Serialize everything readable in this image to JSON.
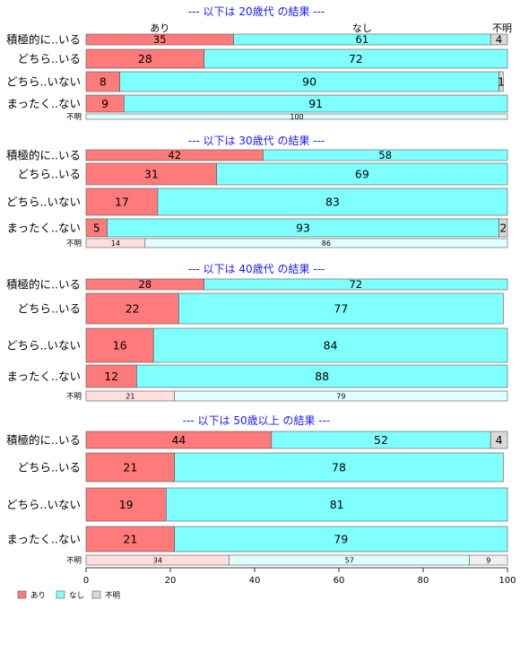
{
  "colors": {
    "あり": "#ff7a7a",
    "なし": "#80ffff",
    "不明": "#d9d9d9",
    "あり_light": "#ffdede",
    "なし_light": "#e0ffff",
    "不明_light": "#f0f0f0",
    "title": "#1a1aff"
  },
  "column_headers": [
    "あり",
    "なし",
    "不明"
  ],
  "chart_data": {
    "type": "bar",
    "orientation": "horizontal",
    "stacked": "percent",
    "xlim": [
      0,
      100
    ],
    "xticks": [
      "0",
      "20",
      "40",
      "60",
      "80",
      "100"
    ],
    "legend": {
      "placement": "bottom-left",
      "entries": [
        "あり",
        "なし",
        "不明"
      ]
    },
    "panels": [
      {
        "title": "--- 以下は 20歳代 の結果 ---",
        "rows": [
          {
            "label": "積極的に..いる",
            "values": [
              35,
              61,
              4
            ]
          },
          {
            "label": "どちら..いる",
            "values": [
              28,
              72,
              0
            ]
          },
          {
            "label": "どちら..いない",
            "values": [
              8,
              90,
              1
            ]
          },
          {
            "label": "まったく..ない",
            "values": [
              9,
              91,
              0
            ]
          },
          {
            "label": "不明",
            "values": [
              0,
              100,
              0
            ],
            "small": true
          }
        ]
      },
      {
        "title": "--- 以下は 30歳代 の結果 ---",
        "rows": [
          {
            "label": "積極的に..いる",
            "values": [
              42,
              58,
              0
            ]
          },
          {
            "label": "どちら..いる",
            "values": [
              31,
              69,
              0
            ]
          },
          {
            "label": "どちら..いない",
            "values": [
              17,
              83,
              0
            ]
          },
          {
            "label": "まったく..ない",
            "values": [
              5,
              93,
              2
            ]
          },
          {
            "label": "不明",
            "values": [
              14,
              86,
              0
            ],
            "small": true
          }
        ]
      },
      {
        "title": "--- 以下は 40歳代 の結果 ---",
        "rows": [
          {
            "label": "積極的に..いる",
            "values": [
              28,
              72,
              0
            ]
          },
          {
            "label": "どちら..いる",
            "values": [
              22,
              77,
              0
            ]
          },
          {
            "label": "どちら..いない",
            "values": [
              16,
              84,
              0
            ]
          },
          {
            "label": "まったく..ない",
            "values": [
              12,
              88,
              0
            ]
          },
          {
            "label": "不明",
            "values": [
              21,
              79,
              0
            ],
            "small": true
          }
        ]
      },
      {
        "title": "--- 以下は 50歳以上 の結果 ---",
        "rows": [
          {
            "label": "積極的に..いる",
            "values": [
              44,
              52,
              4
            ]
          },
          {
            "label": "どちら..いる",
            "values": [
              21,
              78,
              0
            ]
          },
          {
            "label": "どちら..いない",
            "values": [
              19,
              81,
              0
            ]
          },
          {
            "label": "まったく..ない",
            "values": [
              21,
              79,
              0
            ]
          },
          {
            "label": "不明",
            "values": [
              34,
              57,
              9
            ],
            "small": true
          }
        ]
      }
    ]
  }
}
